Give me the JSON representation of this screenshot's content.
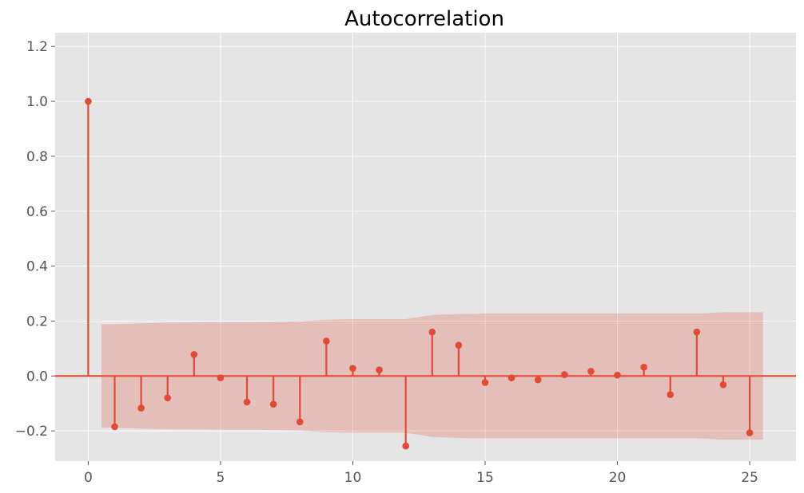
{
  "chart_data": {
    "type": "stem",
    "title": "Autocorrelation",
    "xlabel": "",
    "ylabel": "",
    "x": [
      0,
      1,
      2,
      3,
      4,
      5,
      6,
      7,
      8,
      9,
      10,
      11,
      12,
      13,
      14,
      15,
      16,
      17,
      18,
      19,
      20,
      21,
      22,
      23,
      24,
      25
    ],
    "values": [
      1.0,
      -0.185,
      -0.117,
      -0.08,
      0.078,
      -0.007,
      -0.095,
      -0.103,
      -0.167,
      0.127,
      0.028,
      0.022,
      -0.255,
      0.16,
      0.112,
      -0.024,
      -0.007,
      -0.014,
      0.005,
      0.017,
      0.003,
      0.032,
      -0.068,
      0.16,
      -0.032,
      -0.207
    ],
    "confidence_band": {
      "x": [
        0.5,
        1,
        2,
        3,
        4,
        5,
        6,
        7,
        8,
        9,
        10,
        11,
        12,
        13,
        14,
        15,
        16,
        17,
        18,
        19,
        20,
        21,
        22,
        23,
        24,
        25,
        25.5
      ],
      "upper": [
        0.188,
        0.189,
        0.192,
        0.194,
        0.195,
        0.196,
        0.196,
        0.197,
        0.199,
        0.205,
        0.207,
        0.207,
        0.207,
        0.222,
        0.226,
        0.227,
        0.227,
        0.227,
        0.227,
        0.227,
        0.227,
        0.227,
        0.227,
        0.227,
        0.232,
        0.232,
        0.232
      ]
    },
    "xlim": [
      -1.25,
      26.75
    ],
    "ylim": [
      -0.31,
      1.25
    ],
    "xticks": [
      "0",
      "5",
      "10",
      "15",
      "20",
      "25"
    ],
    "yticks": [
      "−0.2",
      "0.0",
      "0.2",
      "0.4",
      "0.6",
      "0.8",
      "1.0",
      "1.2"
    ],
    "grid": true,
    "colors": {
      "stem": "#e24a33",
      "band": "#e24a33",
      "background": "#e5e5e5",
      "grid": "#ffffff"
    }
  }
}
